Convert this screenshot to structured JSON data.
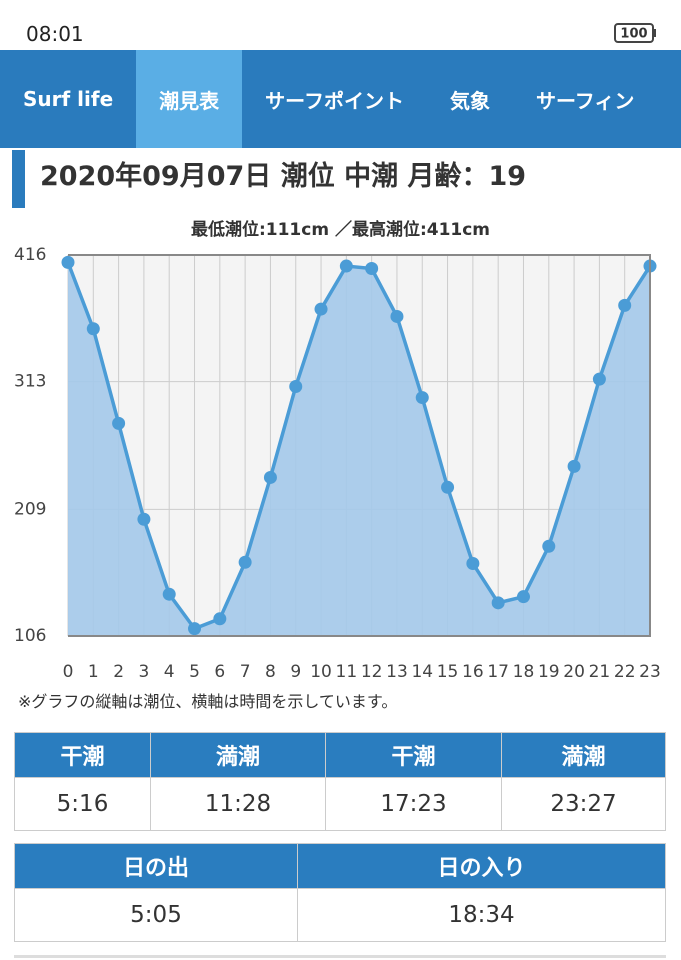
{
  "status_bar": {
    "time": "08:01",
    "battery": "100"
  },
  "nav": {
    "tabs": [
      "Surf life",
      "潮見表",
      "サーフポイント",
      "気象",
      "サーフィン"
    ],
    "active": 1
  },
  "chart_data": {
    "type": "area",
    "title": "2020年09月07日 潮位 中潮 月齢：19",
    "subtitle": "最低潮位:111cm ／最高潮位:411cm",
    "x": [
      0,
      1,
      2,
      3,
      4,
      5,
      6,
      7,
      8,
      9,
      10,
      11,
      12,
      13,
      14,
      15,
      16,
      17,
      18,
      19,
      20,
      21,
      22,
      23
    ],
    "values": [
      410,
      356,
      279,
      201,
      140,
      112,
      120,
      166,
      235,
      309,
      372,
      407,
      405,
      366,
      300,
      227,
      165,
      133,
      138,
      179,
      244,
      315,
      375,
      407
    ],
    "xlim": [
      0,
      23
    ],
    "ylim": [
      106,
      416
    ],
    "xticks": [
      0,
      1,
      2,
      3,
      4,
      5,
      6,
      7,
      8,
      9,
      10,
      11,
      12,
      13,
      14,
      15,
      16,
      17,
      18,
      19,
      20,
      21,
      22,
      23
    ],
    "yticks": [
      106,
      209,
      313,
      416
    ],
    "color": "#4b9cd6",
    "fill_color": "#a4c9ea",
    "grid": true
  },
  "note": "※グラフの縦軸は潮位、横軸は時間を示しています。",
  "tide_table": {
    "headers": [
      "干潮",
      "満潮",
      "干潮",
      "満潮"
    ],
    "row": [
      "5:16",
      "11:28",
      "17:23",
      "23:27"
    ]
  },
  "sun_table": {
    "headers": [
      "日の出",
      "日の入り"
    ],
    "row": [
      "5:05",
      "18:34"
    ]
  }
}
